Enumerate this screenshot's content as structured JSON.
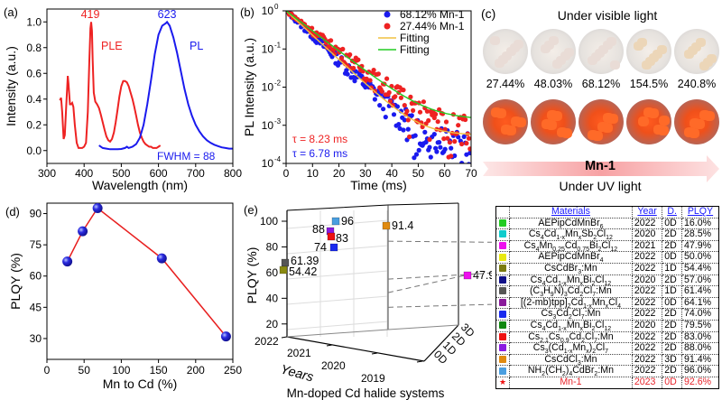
{
  "panels": {
    "a": {
      "label": "(a)"
    },
    "b": {
      "label": "(b)"
    },
    "c": {
      "label": "(c)",
      "title_top": "Under visible light",
      "title_bottom": "Under UV light",
      "arrow_label": "Mn-1",
      "percentages": [
        "27.44%",
        "48.03%",
        "68.12%",
        "154.5%",
        "240.8%"
      ]
    },
    "d": {
      "label": "(d)"
    },
    "e": {
      "label": "(e)"
    }
  },
  "chart_data": [
    {
      "id": "a",
      "type": "line",
      "xlabel": "Wavelength (nm)",
      "ylabel": "Intensity (a.u.)",
      "xlim": [
        300,
        800
      ],
      "ylim": [
        -0.1,
        1.1
      ],
      "xticks": [
        "300",
        "400",
        "500",
        "600",
        "700",
        "800"
      ],
      "yticks": [
        "0.0",
        "0.2",
        "0.4",
        "0.6",
        "0.8",
        "1.0"
      ],
      "series": [
        {
          "name": "PLE",
          "color": "#ee2222",
          "x": [
            335,
            338,
            341,
            345,
            348,
            352,
            356,
            358,
            362,
            365,
            368,
            371,
            375,
            380,
            385,
            390,
            395,
            400,
            405,
            410,
            414,
            417,
            419,
            421,
            423,
            426,
            430,
            435,
            440,
            445,
            450,
            455,
            460,
            465,
            470,
            475,
            480,
            485,
            490,
            495,
            500,
            505,
            510,
            515,
            520,
            525,
            530,
            535,
            540,
            545,
            550,
            555,
            560,
            565,
            570,
            575,
            580,
            585,
            590,
            595,
            600,
            605
          ],
          "y": [
            0.39,
            0.41,
            0.3,
            0.09,
            0.12,
            0.35,
            0.58,
            0.52,
            0.36,
            0.36,
            0.37,
            0.34,
            0.2,
            0.06,
            0.02,
            0.02,
            0.02,
            0.03,
            0.06,
            0.3,
            0.7,
            0.95,
            1.0,
            0.93,
            0.7,
            0.45,
            0.38,
            0.36,
            0.33,
            0.28,
            0.22,
            0.16,
            0.11,
            0.08,
            0.07,
            0.09,
            0.14,
            0.22,
            0.32,
            0.42,
            0.5,
            0.54,
            0.54,
            0.53,
            0.5,
            0.45,
            0.4,
            0.34,
            0.27,
            0.2,
            0.14,
            0.1,
            0.07,
            0.05,
            0.04,
            0.03,
            0.03,
            0.02,
            0.02,
            0.02,
            0.03,
            0.04
          ]
        },
        {
          "name": "PL",
          "color": "#1a1aee",
          "x": [
            440,
            450,
            460,
            470,
            480,
            490,
            500,
            510,
            515,
            520,
            530,
            540,
            550,
            560,
            570,
            580,
            590,
            600,
            610,
            615,
            620,
            623,
            630,
            640,
            650,
            660,
            670,
            680,
            690,
            700,
            710,
            720,
            730,
            740,
            750,
            760,
            770,
            780,
            790,
            800
          ],
          "y": [
            0.04,
            0.02,
            0.015,
            0.01,
            0.01,
            0.01,
            0.012,
            0.02,
            0.03,
            0.02,
            0.03,
            0.05,
            0.1,
            0.2,
            0.36,
            0.55,
            0.75,
            0.9,
            0.97,
            0.98,
            0.99,
            1.0,
            0.97,
            0.88,
            0.76,
            0.62,
            0.48,
            0.36,
            0.27,
            0.2,
            0.15,
            0.11,
            0.08,
            0.06,
            0.045,
            0.035,
            0.025,
            0.02,
            0.015,
            0.015
          ]
        }
      ],
      "annotations": [
        {
          "text": "419",
          "color": "#ee2222"
        },
        {
          "text": "623",
          "color": "#1a1aee"
        },
        {
          "text": "PLE",
          "color": "#ee2222"
        },
        {
          "text": "PL",
          "color": "#1a1aee"
        },
        {
          "text": "FWHM = 88",
          "color": "#1a1aee"
        }
      ]
    },
    {
      "id": "b",
      "type": "scatter",
      "yscale": "log",
      "xlabel": "Time (ms)",
      "ylabel": "PL Intensity (a.u.)",
      "xlim": [
        0,
        70
      ],
      "ylim": [
        0.0001,
        1
      ],
      "xticks": [
        "0",
        "10",
        "20",
        "30",
        "40",
        "50",
        "60",
        "70"
      ],
      "yticks": [
        {
          "base": "10",
          "exp": "0"
        },
        {
          "base": "10",
          "exp": "-1"
        },
        {
          "base": "10",
          "exp": "-2"
        },
        {
          "base": "10",
          "exp": "-3"
        },
        {
          "base": "10",
          "exp": "-4"
        }
      ],
      "legend": {
        "position": "top-right"
      },
      "series": [
        {
          "name": "68.12% Mn-1",
          "color": "#1a1aee",
          "kind": "scatter",
          "tau_ms": 6.78,
          "offset": 0.0003
        },
        {
          "name": "27.44% Mn-1",
          "color": "#ee2222",
          "kind": "scatter",
          "tau_ms": 8.23,
          "offset": 0.0008
        },
        {
          "name": "Fitting",
          "color": "#f0c040",
          "kind": "line",
          "tau_ms": 6.78,
          "offset": 0.00055
        },
        {
          "name": "Fitting",
          "color": "#22cc22",
          "kind": "line",
          "tau_ms": 8.23,
          "offset": 0.0014
        }
      ],
      "annotations": [
        {
          "text": "τ = 8.23 ms",
          "color": "#ee2222"
        },
        {
          "text": "τ = 6.78 ms",
          "color": "#1a1aee"
        }
      ]
    },
    {
      "id": "d",
      "type": "line",
      "xlabel": "Mn to Cd (%)",
      "ylabel": "PLQY (%)",
      "xlim": [
        0,
        250
      ],
      "ylim": [
        20,
        95
      ],
      "xticks": [
        "0",
        "50",
        "100",
        "150",
        "200",
        "250"
      ],
      "yticks": [
        "30",
        "45",
        "60",
        "75",
        "90"
      ],
      "series": [
        {
          "name": "PLQY",
          "line_color": "#e82020",
          "marker_color": "#2a2ae0",
          "x": [
            27.44,
            48.03,
            68.12,
            154.5,
            240.8
          ],
          "y": [
            67,
            81.5,
            92.6,
            68.5,
            31
          ]
        }
      ]
    },
    {
      "id": "e",
      "type": "scatter",
      "projection": "3d",
      "xlabel": "Years",
      "ylabel": "Mn-doped Cd halide systems",
      "zlabel": "PLQY (%)",
      "year_ticks": [
        "2022",
        "2021",
        "2020",
        "2019"
      ],
      "dim_ticks": [
        "0D",
        "1D",
        "2D",
        "3D"
      ],
      "zticks": [
        "20",
        "40",
        "60",
        "80",
        "100"
      ],
      "points": [
        {
          "label": "92.6",
          "year": 2023,
          "dim": "0D",
          "plqy": 92.6,
          "color": "#ee1111",
          "marker": "star"
        },
        {
          "label": "96",
          "year": 2022,
          "dim": "2D",
          "plqy": 96.0,
          "color": "#4a9ee0"
        },
        {
          "label": "91.4",
          "year": 2022,
          "dim": "3D",
          "plqy": 91.4,
          "color": "#e08a10"
        },
        {
          "label": "88",
          "year": 2022,
          "dim": "2D",
          "plqy": 88.0,
          "color": "#8a1ae0"
        },
        {
          "label": "83",
          "year": 2022,
          "dim": "2D",
          "plqy": 83.0,
          "color": "#ee1111"
        },
        {
          "label": "74",
          "year": 2022,
          "dim": "2D",
          "plqy": 74.0,
          "color": "#1a2aee"
        },
        {
          "label": "64.07",
          "year": 2022,
          "dim": "0D",
          "plqy": 64.1,
          "color": "#8a1a9a"
        },
        {
          "label": "61.39",
          "year": 2022,
          "dim": "1D",
          "plqy": 61.4,
          "color": "#555555"
        },
        {
          "label": "54.42",
          "year": 2022,
          "dim": "1D",
          "plqy": 54.4,
          "color": "#8a8a10"
        },
        {
          "label": "50",
          "year": 2022,
          "dim": "0D",
          "plqy": 50.0,
          "color": "#eeee10"
        },
        {
          "label": "16",
          "year": 2022,
          "dim": "0D",
          "plqy": 16.0,
          "color": "#22cc22"
        },
        {
          "label": "79.5",
          "year": 2020,
          "dim": "2D",
          "plqy": 79.5,
          "color": "#118811"
        },
        {
          "label": "57",
          "year": 2020,
          "dim": "2D",
          "plqy": 57.0,
          "color": "#101090"
        },
        {
          "label": "47.9",
          "year": 2021,
          "dim": "2D",
          "plqy": 47.9,
          "color": "#ee10ee"
        },
        {
          "label": "28.5",
          "year": 2020,
          "dim": "2D",
          "plqy": 28.5,
          "color": "#10dddd"
        }
      ]
    }
  ],
  "table": {
    "headers": [
      "",
      "Materials",
      "Year",
      "D.",
      "PLQY"
    ],
    "rows": [
      {
        "color": "#22cc22",
        "material_html": "AEPipCdMnBr<sub>6</sub>",
        "year": "2022",
        "dim": "0D",
        "plqy": "16.0%"
      },
      {
        "color": "#10cccc",
        "material_html": "Cs<sub>4</sub>Cd<sub>1-x</sub>Mn<sub>x</sub>Sb<sub>2</sub>Cl<sub>12</sub>",
        "year": "2020",
        "dim": "2D",
        "plqy": "28.5%"
      },
      {
        "color": "#ee10ee",
        "material_html": "Cs<sub>4</sub>Mn<sub>0.25</sub>Cd<sub>0.75</sub>Bi<sub>2</sub>Cl<sub>12</sub>",
        "year": "2021",
        "dim": "2D",
        "plqy": "47.9%"
      },
      {
        "color": "#e8e810",
        "material_html": "AEPipCdMnBr<sub>4</sub>",
        "year": "2022",
        "dim": "0D",
        "plqy": "50.0%"
      },
      {
        "color": "#7a7a10",
        "material_html": "CsCdBr<sub>3</sub>:Mn",
        "year": "2022",
        "dim": "1D",
        "plqy": "54.4%"
      },
      {
        "color": "#101088",
        "material_html": "Cs<sub>4</sub>Cd<sub>1-x</sub>Mn<sub>x</sub>Bi<sub>2</sub>Cl<sub>12</sub>",
        "year": "2020",
        "dim": "2D",
        "plqy": "57.0%"
      },
      {
        "color": "#555555",
        "material_html": "(C<sub>3</sub>H<sub>9</sub>N)<sub>3</sub>Cd<sub>2</sub>Cl<sub>7</sub>:Mn",
        "year": "2022",
        "dim": "1D",
        "plqy": "61.4%"
      },
      {
        "color": "#8a1a9a",
        "material_html": "[(2-mb)tpp]<sub>2</sub>Cd<sub>1-x</sub>Mn<sub>x</sub>Cl<sub>4</sub>",
        "year": "2022",
        "dim": "0D",
        "plqy": "64.1%"
      },
      {
        "color": "#1a2aee",
        "material_html": "Cs<sub>3</sub>Cd<sub>2</sub>Cl<sub>7</sub>:Mn",
        "year": "2022",
        "dim": "2D",
        "plqy": "74.0%"
      },
      {
        "color": "#118811",
        "material_html": "Cs<sub>4</sub>Cd<sub>1-x</sub>Mn<sub>x</sub>Bi<sub>2</sub>Cl<sub>12</sub>",
        "year": "2020",
        "dim": "2D",
        "plqy": "79.5%"
      },
      {
        "color": "#ee1111",
        "material_html": "Cs<sub>2.1</sub>Cs<sub>0.9</sub>Cd<sub>2</sub>Cl<sub>7</sub>:Mn",
        "year": "2022",
        "dim": "2D",
        "plqy": "83.0%"
      },
      {
        "color": "#8a1ae0",
        "material_html": "Cs<sub>3</sub>(Cd<sub>1-x</sub>Mn<sub>x</sub>)<sub>2</sub>Cl<sub>7</sub>",
        "year": "2022",
        "dim": "2D",
        "plqy": "88.0%"
      },
      {
        "color": "#e08a10",
        "material_html": "CsCdCl<sub>3</sub>:Mn",
        "year": "2022",
        "dim": "3D",
        "plqy": "91.4%"
      },
      {
        "color": "#4a9ee0",
        "material_html": "NH<sub>2</sub>(CH<sub>2</sub>)<sub>4</sub>CdBr<sub>2</sub>:Mn",
        "year": "2022",
        "dim": "2D",
        "plqy": "96.0%"
      },
      {
        "color": "#ee1111",
        "star": true,
        "highlight": true,
        "material_html": "Mn-1",
        "year": "2023",
        "dim": "0D",
        "plqy": "92.6%"
      }
    ]
  }
}
